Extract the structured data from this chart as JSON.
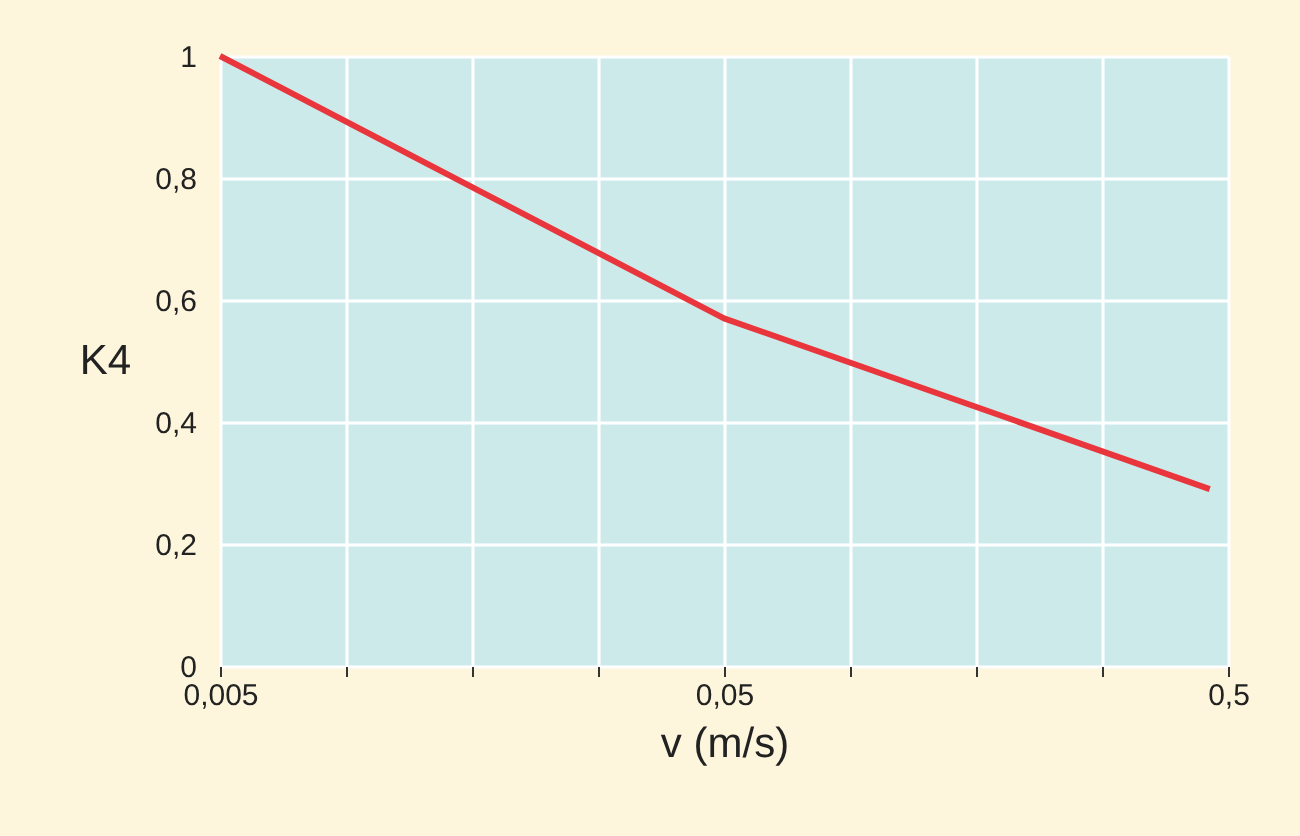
{
  "chart_data": {
    "type": "line",
    "xlabel": "v (m/s)",
    "ylabel": "K4",
    "x": [
      0.005,
      0.05,
      0.46
    ],
    "series": [
      {
        "color": "#e8363c",
        "values": [
          1,
          0.57,
          0.29
        ]
      }
    ],
    "log": "x",
    "xlim": [
      0.005,
      0.5
    ],
    "xticks": [
      {
        "value": 0.005,
        "label": "0,005"
      },
      {
        "value": 0.008891,
        "label": null
      },
      {
        "value": 0.015811,
        "label": null
      },
      {
        "value": 0.028117,
        "label": null
      },
      {
        "value": 0.05,
        "label": "0,05"
      },
      {
        "value": 0.08891,
        "label": null
      },
      {
        "value": 0.15811,
        "label": null
      },
      {
        "value": 0.28117,
        "label": null
      },
      {
        "value": 0.5,
        "label": "0,5"
      }
    ],
    "ylim": [
      0,
      1
    ],
    "yticks": [
      0,
      {
        "value": 0.2,
        "label": "0,2"
      },
      {
        "value": 0.4,
        "label": "0,4"
      },
      {
        "value": 0.6,
        "label": "0,6"
      },
      {
        "value": 0.8,
        "label": "0,8"
      },
      1
    ],
    "grid": true,
    "marker": "none",
    "line_style": "solid"
  }
}
